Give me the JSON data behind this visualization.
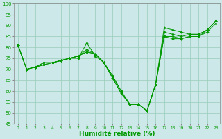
{
  "xlabel": "Humidité relative (%)",
  "background_color": "#cce8e8",
  "grid_color": "#99ccbb",
  "line_color": "#009900",
  "xlim_min": -0.5,
  "xlim_max": 23.5,
  "ylim_min": 45,
  "ylim_max": 100,
  "yticks": [
    45,
    50,
    55,
    60,
    65,
    70,
    75,
    80,
    85,
    90,
    95,
    100
  ],
  "xticks": [
    0,
    1,
    2,
    3,
    4,
    5,
    6,
    7,
    8,
    9,
    10,
    11,
    12,
    13,
    14,
    15,
    16,
    17,
    18,
    19,
    20,
    21,
    22,
    23
  ],
  "series": [
    [
      81,
      70,
      71,
      73,
      73,
      74,
      75,
      75,
      82,
      76,
      73,
      66,
      59,
      54,
      54,
      51,
      63,
      89,
      88,
      87,
      86,
      86,
      88,
      92
    ],
    [
      81,
      70,
      71,
      73,
      73,
      74,
      75,
      76,
      79,
      77,
      73,
      66,
      59,
      54,
      54,
      51,
      63,
      87,
      86,
      85,
      86,
      86,
      88,
      92
    ],
    [
      81,
      70,
      71,
      72,
      73,
      74,
      75,
      76,
      78,
      77,
      73,
      67,
      60,
      54,
      54,
      51,
      63,
      85,
      85,
      84,
      85,
      85,
      88,
      92
    ],
    [
      81,
      70,
      71,
      72,
      73,
      74,
      75,
      76,
      78,
      77,
      73,
      67,
      60,
      54,
      54,
      51,
      63,
      85,
      84,
      84,
      85,
      85,
      87,
      91
    ]
  ]
}
